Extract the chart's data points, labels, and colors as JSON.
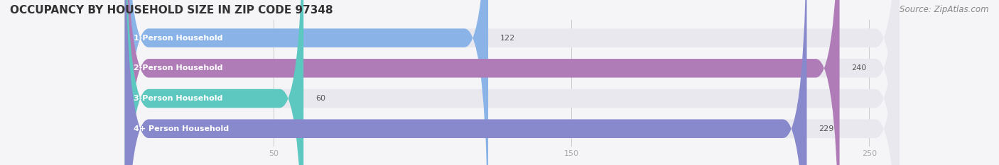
{
  "title": "OCCUPANCY BY HOUSEHOLD SIZE IN ZIP CODE 97348",
  "source": "Source: ZipAtlas.com",
  "categories": [
    "1-Person Household",
    "2-Person Household",
    "3-Person Household",
    "4+ Person Household"
  ],
  "values": [
    122,
    240,
    60,
    229
  ],
  "bar_colors": [
    "#8ab4e8",
    "#b07cb8",
    "#5cc8c0",
    "#8888cc"
  ],
  "bar_bg_color": "#e8e8ee",
  "xlim": [
    0,
    260
  ],
  "xticks": [
    50,
    150,
    250
  ],
  "title_fontsize": 11,
  "source_fontsize": 8.5,
  "label_fontsize": 8,
  "value_fontsize": 8,
  "background_color": "#f5f5f8",
  "bar_height": 0.62,
  "bar_gap": 0.15
}
